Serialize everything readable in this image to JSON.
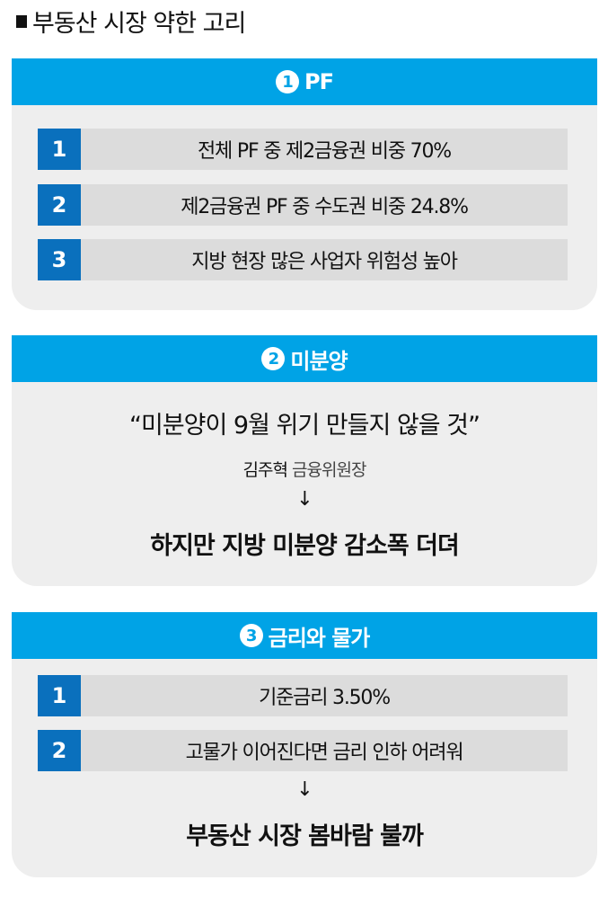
{
  "title": "부동산 시장 약한 고리",
  "sections": [
    {
      "number": "1",
      "heading": "PF",
      "items": [
        {
          "num": "1",
          "text": "전체 PF 중 제2금융권 비중 70%"
        },
        {
          "num": "2",
          "text": "제2금융권 PF 중 수도권 비중 24.8%"
        },
        {
          "num": "3",
          "text": "지방 현장 많은 사업자 위험성 높아"
        }
      ]
    },
    {
      "number": "2",
      "heading": "미분양",
      "quote": "“미분양이 9월 위기 만들지 않을 것”",
      "speaker_name": "김주혁",
      "speaker_role": "금융위원장",
      "arrow": "↓",
      "result": "하지만 지방 미분양 감소폭 더뎌"
    },
    {
      "number": "3",
      "heading": "금리와 물가",
      "items": [
        {
          "num": "1",
          "text": "기준금리 3.50%"
        },
        {
          "num": "2",
          "text": "고물가 이어진다면 금리 인하 어려워"
        }
      ],
      "arrow": "↓",
      "result": "부동산 시장 봄바람 불까"
    }
  ],
  "colors": {
    "header": "#00a3e6",
    "number_box": "#0a70bd",
    "panel_bg": "#eeeeee",
    "row_bg": "#dcdcdc"
  }
}
